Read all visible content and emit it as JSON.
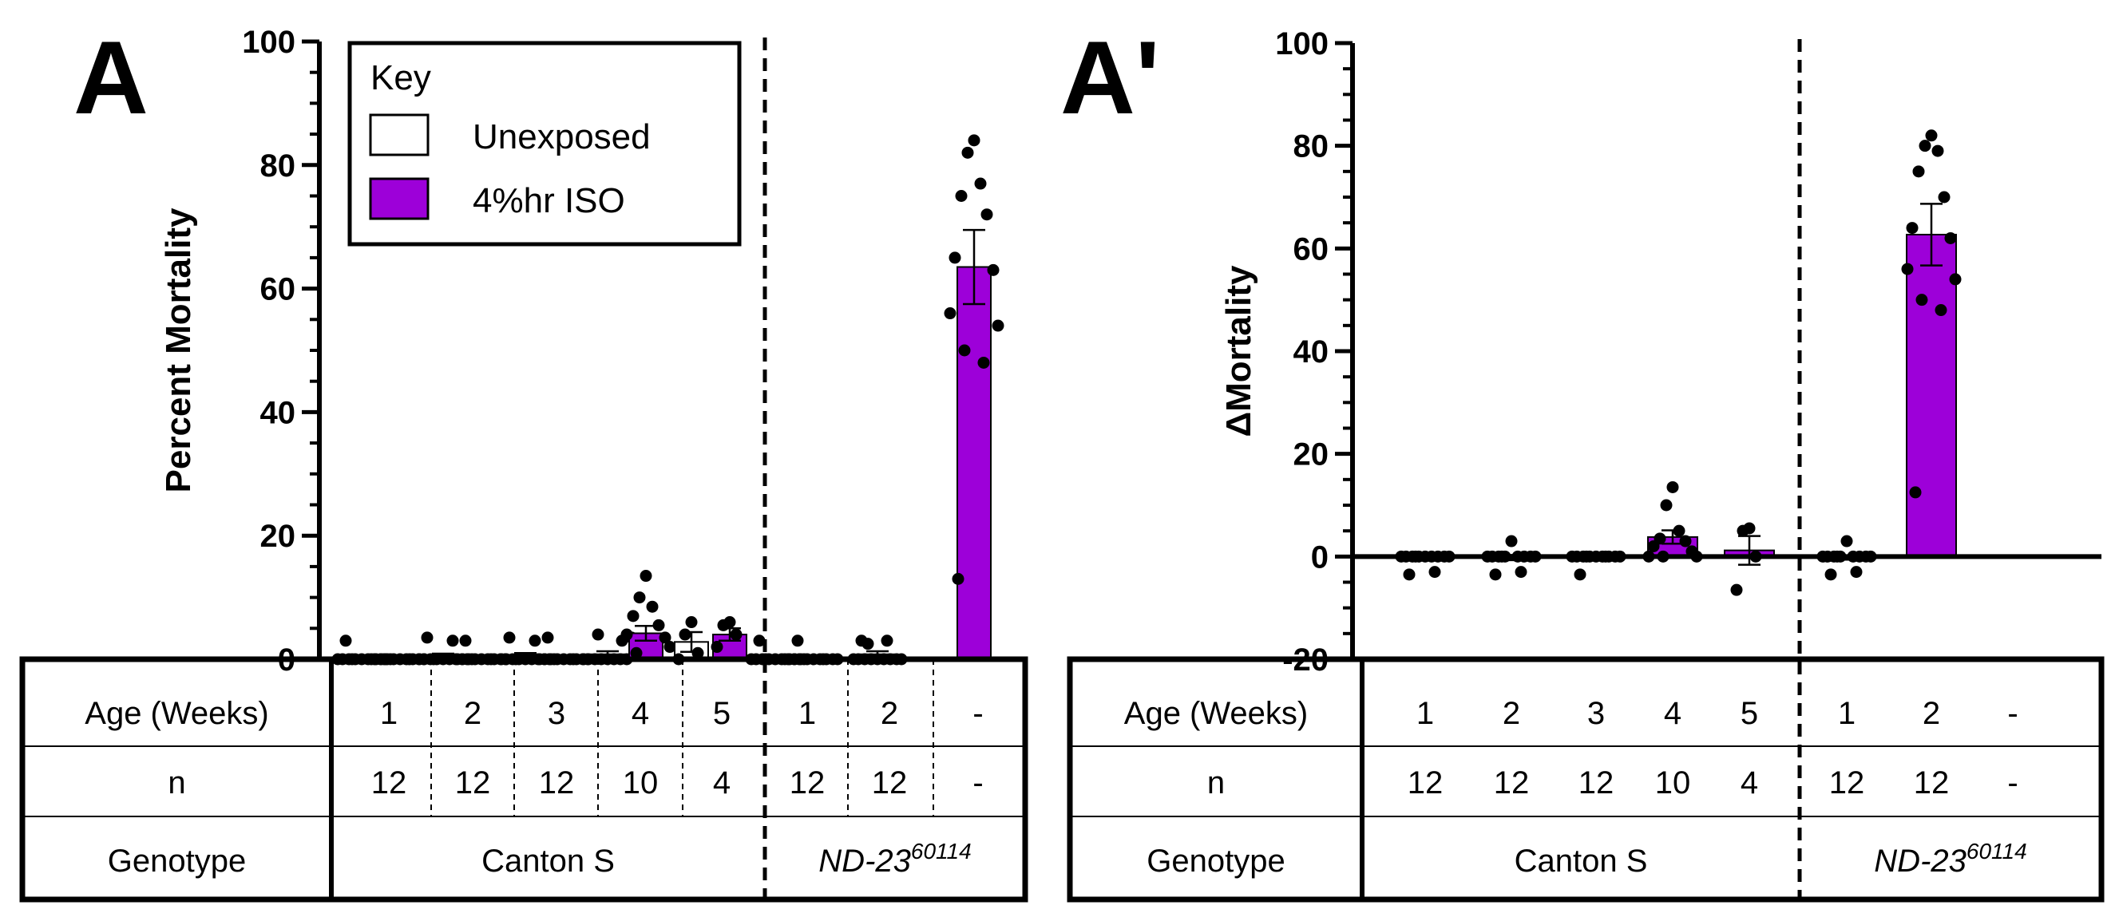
{
  "colors": {
    "iso": "#9d00d9",
    "unexposed": "#ffffff",
    "ink": "#000000"
  },
  "legend": {
    "title": "Key",
    "entries": [
      {
        "label": "Unexposed",
        "color": "#ffffff"
      },
      {
        "label": "4%hr ISO",
        "color": "#9d00d9"
      }
    ]
  },
  "table": {
    "row_labels": [
      "Age (Weeks)",
      "n",
      "Genotype"
    ],
    "ages": [
      "1",
      "2",
      "3",
      "4",
      "5",
      "1",
      "2",
      "-"
    ],
    "ns": [
      "12",
      "12",
      "12",
      "10",
      "4",
      "12",
      "12",
      "-"
    ],
    "genotype_wt": "Canton S",
    "genotype_mut_base": "ND-23",
    "genotype_mut_sup": "60114"
  },
  "chart_data": [
    {
      "type": "bar",
      "panel_label": "A",
      "title": "",
      "xlabel": "",
      "ylabel": "Percent Mortality",
      "ylim": [
        0,
        100
      ],
      "yticks": [
        "0",
        "20",
        "40",
        "60",
        "80",
        "100"
      ],
      "groups": [
        {
          "genotype": "Canton S",
          "age": "1",
          "n": "12",
          "unexposed": {
            "mean": 0.3,
            "sem": 0.3,
            "points": [
              0,
              0,
              0,
              0,
              0,
              0,
              0,
              0,
              0,
              0,
              0,
              3
            ]
          },
          "iso": {
            "mean": 0.0,
            "sem": 0.0,
            "points": [
              0,
              0,
              0,
              0,
              0,
              0,
              0,
              0,
              0,
              0,
              0,
              0
            ]
          }
        },
        {
          "genotype": "Canton S",
          "age": "2",
          "n": "12",
          "unexposed": {
            "mean": 0.5,
            "sem": 0.4,
            "points": [
              0,
              0,
              0,
              0,
              0,
              0,
              0,
              0,
              0,
              0,
              3,
              3.5
            ]
          },
          "iso": {
            "mean": 0.3,
            "sem": 0.3,
            "points": [
              0,
              0,
              0,
              0,
              0,
              0,
              0,
              0,
              0,
              0,
              0,
              3
            ]
          }
        },
        {
          "genotype": "Canton S",
          "age": "3",
          "n": "12",
          "unexposed": {
            "mean": 0.6,
            "sem": 0.4,
            "points": [
              0,
              0,
              0,
              0,
              0,
              0,
              0,
              0,
              0,
              0,
              3,
              3.5
            ]
          },
          "iso": {
            "mean": 0.3,
            "sem": 0.3,
            "points": [
              0,
              0,
              0,
              0,
              0,
              0,
              0,
              0,
              0,
              0,
              0,
              3.5
            ]
          }
        },
        {
          "genotype": "Canton S",
          "age": "4",
          "n": "10",
          "unexposed": {
            "mean": 0.8,
            "sem": 0.5,
            "points": [
              0,
              0,
              0,
              0,
              0,
              0,
              0,
              0,
              3.5,
              4
            ]
          },
          "iso": {
            "mean": 4.2,
            "sem": 1.2,
            "points": [
              13.5,
              10,
              8.5,
              7,
              5.5,
              4,
              3.5,
              3,
              2,
              1
            ]
          }
        },
        {
          "genotype": "Canton S",
          "age": "5",
          "n": "4",
          "unexposed": {
            "mean": 2.8,
            "sem": 1.6,
            "points": [
              6,
              4,
              1,
              0
            ]
          },
          "iso": {
            "mean": 4.0,
            "sem": 1.0,
            "points": [
              6,
              5.5,
              4,
              2
            ]
          }
        },
        {
          "genotype": "ND-23",
          "age": "1",
          "n": "12",
          "unexposed": {
            "mean": 0.3,
            "sem": 0.3,
            "points": [
              0,
              0,
              0,
              0,
              0,
              0,
              0,
              0,
              0,
              0,
              0,
              3
            ]
          },
          "iso": {
            "mean": 0.2,
            "sem": 0.2,
            "points": [
              0,
              0,
              0,
              0,
              0,
              0,
              0,
              0,
              0,
              0,
              0,
              3
            ]
          }
        },
        {
          "genotype": "ND-23",
          "age": "2",
          "n": "12",
          "unexposed": {
            "mean": 0.8,
            "sem": 0.5,
            "points": [
              0,
              0,
              0,
              0,
              0,
              0,
              0,
              0,
              0,
              2.5,
              3,
              3
            ]
          },
          "iso": null
        },
        {
          "genotype": "ND-23",
          "age": "-",
          "n": "-",
          "unexposed": null,
          "iso": {
            "mean": 63.5,
            "sem": 6.0,
            "points": [
              84,
              82,
              77,
              75,
              72,
              65,
              63,
              56,
              54,
              50,
              48,
              13
            ]
          }
        }
      ]
    },
    {
      "type": "bar",
      "panel_label": "A'",
      "title": "",
      "xlabel": "",
      "ylabel": "ΔMortality",
      "ylim": [
        -20,
        100
      ],
      "yticks": [
        "-20",
        "0",
        "20",
        "40",
        "60",
        "80",
        "100"
      ],
      "groups": [
        {
          "age": "1",
          "n": "12",
          "iso": {
            "mean": -0.3,
            "sem": 0.3,
            "points": [
              0,
              0,
              0,
              0,
              0,
              0,
              0,
              0,
              0,
              0,
              -3,
              -3.5
            ]
          }
        },
        {
          "age": "2",
          "n": "12",
          "iso": {
            "mean": -0.2,
            "sem": 0.5,
            "points": [
              3,
              0,
              0,
              0,
              0,
              0,
              0,
              0,
              0,
              0,
              -3,
              -3.5
            ]
          }
        },
        {
          "age": "3",
          "n": "12",
          "iso": {
            "mean": -0.3,
            "sem": 0.3,
            "points": [
              0,
              0,
              0,
              0,
              0,
              0,
              0,
              0,
              0,
              0,
              0,
              -3.5
            ]
          }
        },
        {
          "age": "4",
          "n": "10",
          "iso": {
            "mean": 3.8,
            "sem": 1.3,
            "points": [
              13.5,
              10,
              5,
              3.5,
              3,
              2,
              1,
              0,
              0,
              0
            ]
          }
        },
        {
          "age": "5",
          "n": "4",
          "iso": {
            "mean": 1.2,
            "sem": 2.8,
            "points": [
              5.5,
              5,
              0,
              -6.5
            ]
          }
        },
        {
          "age": "1",
          "n": "12",
          "iso": {
            "mean": -0.2,
            "sem": 0.4,
            "points": [
              3,
              0,
              0,
              0,
              0,
              0,
              0,
              0,
              0,
              0,
              -3,
              -3.5
            ]
          }
        },
        {
          "age": "2",
          "n": "12",
          "iso": {
            "mean": 62.7,
            "sem": 6.0,
            "points": [
              82,
              80,
              79,
              75,
              70,
              64,
              62,
              56,
              54,
              50,
              48,
              12.5
            ]
          }
        },
        {
          "age": "-",
          "n": "-",
          "iso": null
        }
      ]
    }
  ]
}
